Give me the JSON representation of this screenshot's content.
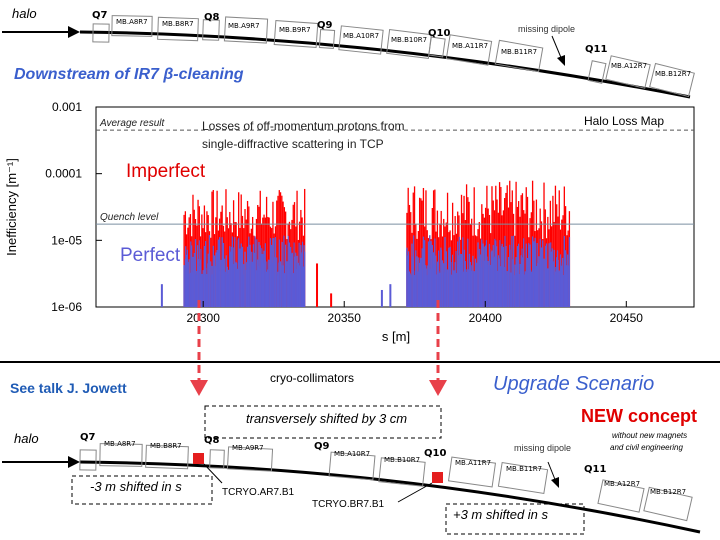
{
  "colors": {
    "accent_blue": "#3a5fcd",
    "heading_blue": "#1f5bb5",
    "imperfect_red": "#ff0000",
    "perfect_blue": "#5b5bd6",
    "marker_red": "#e41e1e",
    "arrow_red": "#e8404a"
  },
  "top_beamline": {
    "halo_label": "halo",
    "quads": [
      "Q7",
      "Q8",
      "Q9",
      "Q10",
      "Q11"
    ],
    "magnets": [
      "MB.A8R7",
      "MB.B8R7",
      "MB.A9R7",
      "MB.B9R7",
      "MB.A10R7",
      "MB.B10R7",
      "MB.A11R7",
      "MB.B11R7",
      "MB.A12R7",
      "MB.B12R7"
    ],
    "missing_dipole": "missing dipole"
  },
  "section_title": "Downstream of IR7 β-cleaning",
  "plot": {
    "chart_data": {
      "type": "bar",
      "title": "Halo Loss Map",
      "subtitle": "Losses of off-momentum protons from single-diffractive scattering in TCP",
      "xlabel": "s [m]",
      "ylabel": "Inefficiency [m⁻¹]",
      "xlim": [
        20262,
        20474
      ],
      "ylim": [
        1e-06,
        0.001
      ],
      "log_y": true,
      "grid": false,
      "legend_position": "none",
      "x_ticks": [
        "20300",
        "20350",
        "20400",
        "20450"
      ],
      "y_ticks": [
        "0.001",
        "0.0001",
        "1e-05",
        "1e-06"
      ],
      "reference_lines": [
        {
          "label": "Average result",
          "y": 0.00045
        },
        {
          "label": "Quench level",
          "y": 1.75e-05
        }
      ],
      "annotations": [
        "Imperfect",
        "Perfect"
      ],
      "series": [
        {
          "name": "Imperfect",
          "color": "#ff0000",
          "ranges": [
            [
              20293,
              20336,
              1e-05,
              6e-05
            ],
            [
              20372,
              20430,
              1e-05,
              8e-05
            ]
          ]
        },
        {
          "name": "Perfect",
          "color": "#5b5bd6",
          "ranges": [
            [
              20293,
              20336,
              3e-06,
              1.2e-05
            ],
            [
              20372,
              20430,
              3e-06,
              1.2e-05
            ]
          ]
        }
      ],
      "isolated_bars": [
        {
          "x": 20285,
          "y": 2.2e-06,
          "series": "Perfect"
        },
        {
          "x": 20340,
          "y": 4.5e-06,
          "series": "Imperfect"
        },
        {
          "x": 20345,
          "y": 1.6e-06,
          "series": "Imperfect"
        },
        {
          "x": 20363,
          "y": 1.8e-06,
          "series": "Perfect"
        },
        {
          "x": 20366,
          "y": 2.2e-06,
          "series": "Perfect"
        }
      ]
    }
  },
  "bottom": {
    "talk_note": "See talk J. Jowett",
    "cryo_label": "cryo-collimators",
    "upgrade_title": "Upgrade Scenario",
    "shift_note": "transversely shifted by 3 cm",
    "new_concept": "NEW concept",
    "new_concept_note1": "without new magnets",
    "new_concept_note2": "and civil engineering",
    "halo_label": "halo",
    "quads": [
      "Q7",
      "Q8",
      "Q9",
      "Q10",
      "Q11"
    ],
    "magnets": [
      "MB.A8R7",
      "MB.B8R7",
      "MB.A9R7",
      "MB.A10R7",
      "MB.B10R7",
      "MB.A11R7",
      "MB.B11R7",
      "MB.A12R7",
      "MB.B12R7"
    ],
    "missing_dipole": "missing dipole",
    "shift_minus": "-3 m shifted in s",
    "shift_plus": "+3 m shifted in s",
    "tcryo_a": "TCRYO.AR7.B1",
    "tcryo_b": "TCRYO.BR7.B1"
  }
}
